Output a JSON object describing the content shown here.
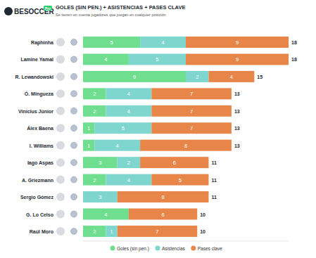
{
  "chart_data": {
    "type": "bar",
    "orientation": "horizontal",
    "stacked": true,
    "data_labels": true,
    "tick_labels": false,
    "grid": false,
    "legend": "bottom",
    "brand": "BESOCCER",
    "brand_tag": "Pro",
    "title": "GOLES (SIN PEN.) + ASISTENCIAS + PASES CLAVE",
    "subtitle": "Se tienen en cuenta jugadores que juegan en cualquier posición",
    "categories": [
      "Raphinha",
      "Lamine Yamal",
      "R. Lewandowski",
      "Ó. Mingueza",
      "Vinícius Júnior",
      "Álex Baena",
      "I. Williams",
      "Iago Aspas",
      "A. Griezmann",
      "Sergio Gómez",
      "G. Lo Celso",
      "Raúl Moro"
    ],
    "series": [
      {
        "name": "Goles (sin pen.)",
        "color": "#6fdf8f",
        "values": [
          5,
          4,
          9,
          2,
          2,
          1,
          1,
          3,
          2,
          0,
          4,
          2
        ]
      },
      {
        "name": "Asistencias",
        "color": "#7fd6cf",
        "values": [
          4,
          5,
          2,
          4,
          4,
          5,
          4,
          2,
          4,
          3,
          0,
          1
        ]
      },
      {
        "name": "Pases clave",
        "color": "#e8864a",
        "values": [
          9,
          9,
          4,
          7,
          7,
          7,
          8,
          6,
          5,
          8,
          6,
          7
        ]
      }
    ],
    "totals": [
      18,
      18,
      15,
      13,
      13,
      13,
      13,
      11,
      11,
      11,
      10,
      10
    ],
    "xlim": [
      0,
      18
    ]
  }
}
